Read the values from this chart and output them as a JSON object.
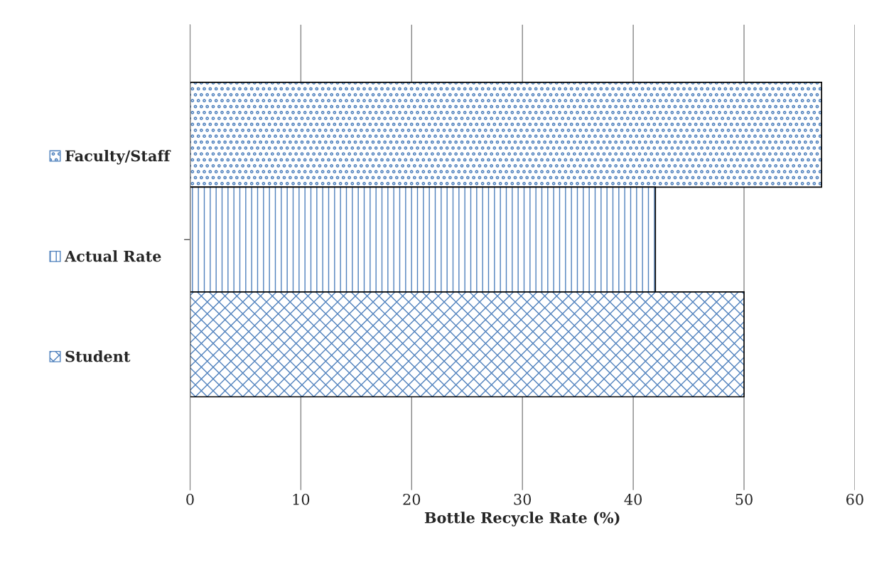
{
  "chart_data": {
    "type": "bar",
    "orientation": "horizontal",
    "categories": [
      null
    ],
    "series": [
      {
        "name": "Faculty/Staff",
        "color": "#4f81bd",
        "values": [
          57
        ]
      },
      {
        "name": "Actual Rate",
        "color": "#4f81bd",
        "values": [
          42
        ]
      },
      {
        "name": "Student",
        "color": "#4f81bd",
        "values": [
          50
        ]
      }
    ],
    "xlabel": "Bottle Recycle Rate (%)",
    "xlim": [
      0,
      60
    ],
    "xticks": [
      0,
      10,
      20,
      30,
      40,
      50,
      60
    ],
    "grid": "x",
    "legend": "left"
  }
}
